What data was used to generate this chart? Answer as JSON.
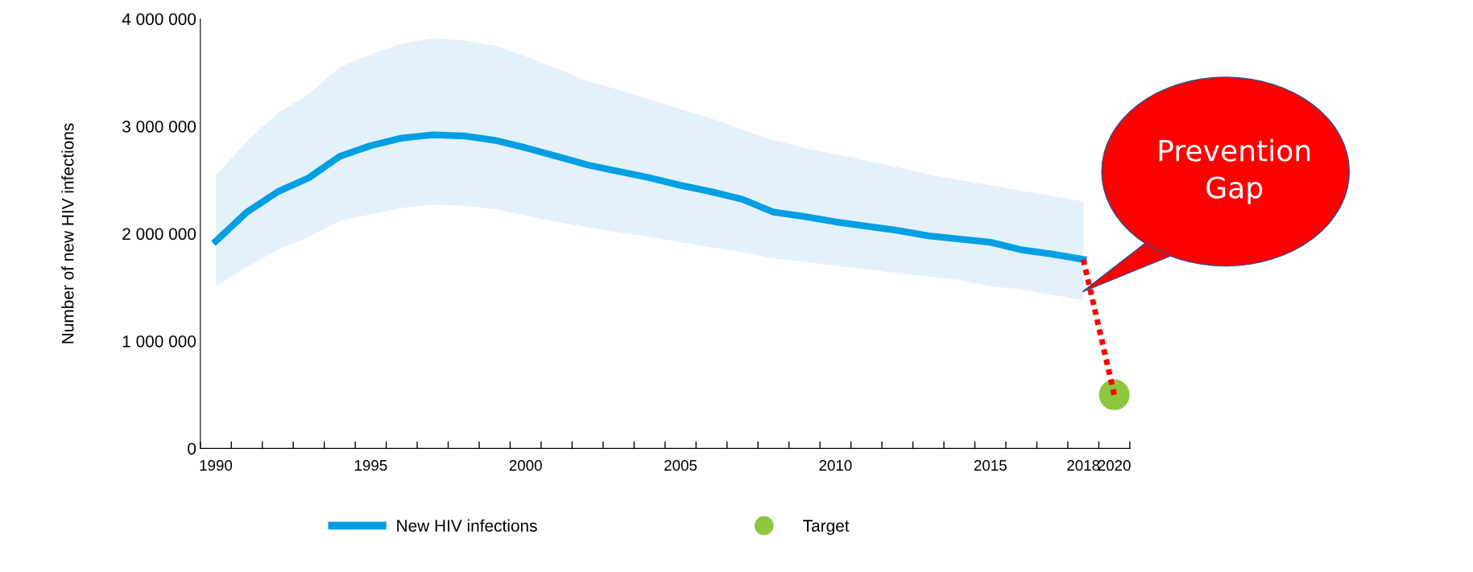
{
  "chart_data": {
    "type": "line",
    "ylabel": "Number of new HIV infections",
    "categories": [
      "1990",
      null,
      null,
      null,
      null,
      "1995",
      null,
      null,
      null,
      null,
      "2000",
      null,
      null,
      null,
      null,
      "2005",
      null,
      null,
      null,
      null,
      "2010",
      null,
      null,
      null,
      null,
      "2015",
      null,
      null,
      "2018",
      "2020"
    ],
    "series": [
      {
        "name": "New HIV infections",
        "type": "line",
        "color": "#009fe3",
        "line_style": "solid",
        "values": [
          1930000,
          2200000,
          2390000,
          2520000,
          2720000,
          2820000,
          2890000,
          2920000,
          2910000,
          2870000,
          2800000,
          2720000,
          2640000,
          2580000,
          2520000,
          2450000,
          2390000,
          2320000,
          2200000,
          2160000,
          2110000,
          2070000,
          2030000,
          1980000,
          1950000,
          1920000,
          1850000,
          1810000,
          1760000,
          null
        ],
        "lower": [
          1510000,
          1690000,
          1850000,
          1970000,
          2120000,
          2180000,
          2240000,
          2270000,
          2260000,
          2230000,
          2170000,
          2110000,
          2060000,
          2010000,
          1970000,
          1920000,
          1870000,
          1830000,
          1770000,
          1740000,
          1700000,
          1670000,
          1630000,
          1600000,
          1570000,
          1510000,
          1480000,
          1430000,
          1380000,
          null
        ],
        "upper": [
          2540000,
          2860000,
          3120000,
          3300000,
          3550000,
          3670000,
          3770000,
          3820000,
          3800000,
          3750000,
          3650000,
          3540000,
          3420000,
          3340000,
          3250000,
          3160000,
          3070000,
          2970000,
          2870000,
          2800000,
          2740000,
          2680000,
          2620000,
          2550000,
          2500000,
          2450000,
          2400000,
          2350000,
          2300000,
          null
        ]
      },
      {
        "type": "line",
        "color": "#ff0000",
        "line_style": "dotted",
        "values": [
          null,
          null,
          null,
          null,
          null,
          null,
          null,
          null,
          null,
          null,
          null,
          null,
          null,
          null,
          null,
          null,
          null,
          null,
          null,
          null,
          null,
          null,
          null,
          null,
          null,
          null,
          null,
          null,
          1760000,
          500000
        ]
      },
      {
        "name": "Target",
        "type": "scatter",
        "color": "#8dc63f",
        "marker": "circle",
        "values": [
          null,
          null,
          null,
          null,
          null,
          null,
          null,
          null,
          null,
          null,
          null,
          null,
          null,
          null,
          null,
          null,
          null,
          null,
          null,
          null,
          null,
          null,
          null,
          null,
          null,
          null,
          null,
          null,
          null,
          500000
        ]
      }
    ],
    "ylim": [
      0,
      4000000
    ],
    "yticks": [
      {
        "value": 0,
        "label": "0"
      },
      {
        "value": 1000000,
        "label": "1 000 000"
      },
      {
        "value": 2000000,
        "label": "2 000 000"
      },
      {
        "value": 3000000,
        "label": "3 000 000"
      },
      {
        "value": 4000000,
        "label": "4 000 000"
      }
    ],
    "annotations": [
      "Prevention Gap"
    ],
    "legend": "bottom"
  }
}
